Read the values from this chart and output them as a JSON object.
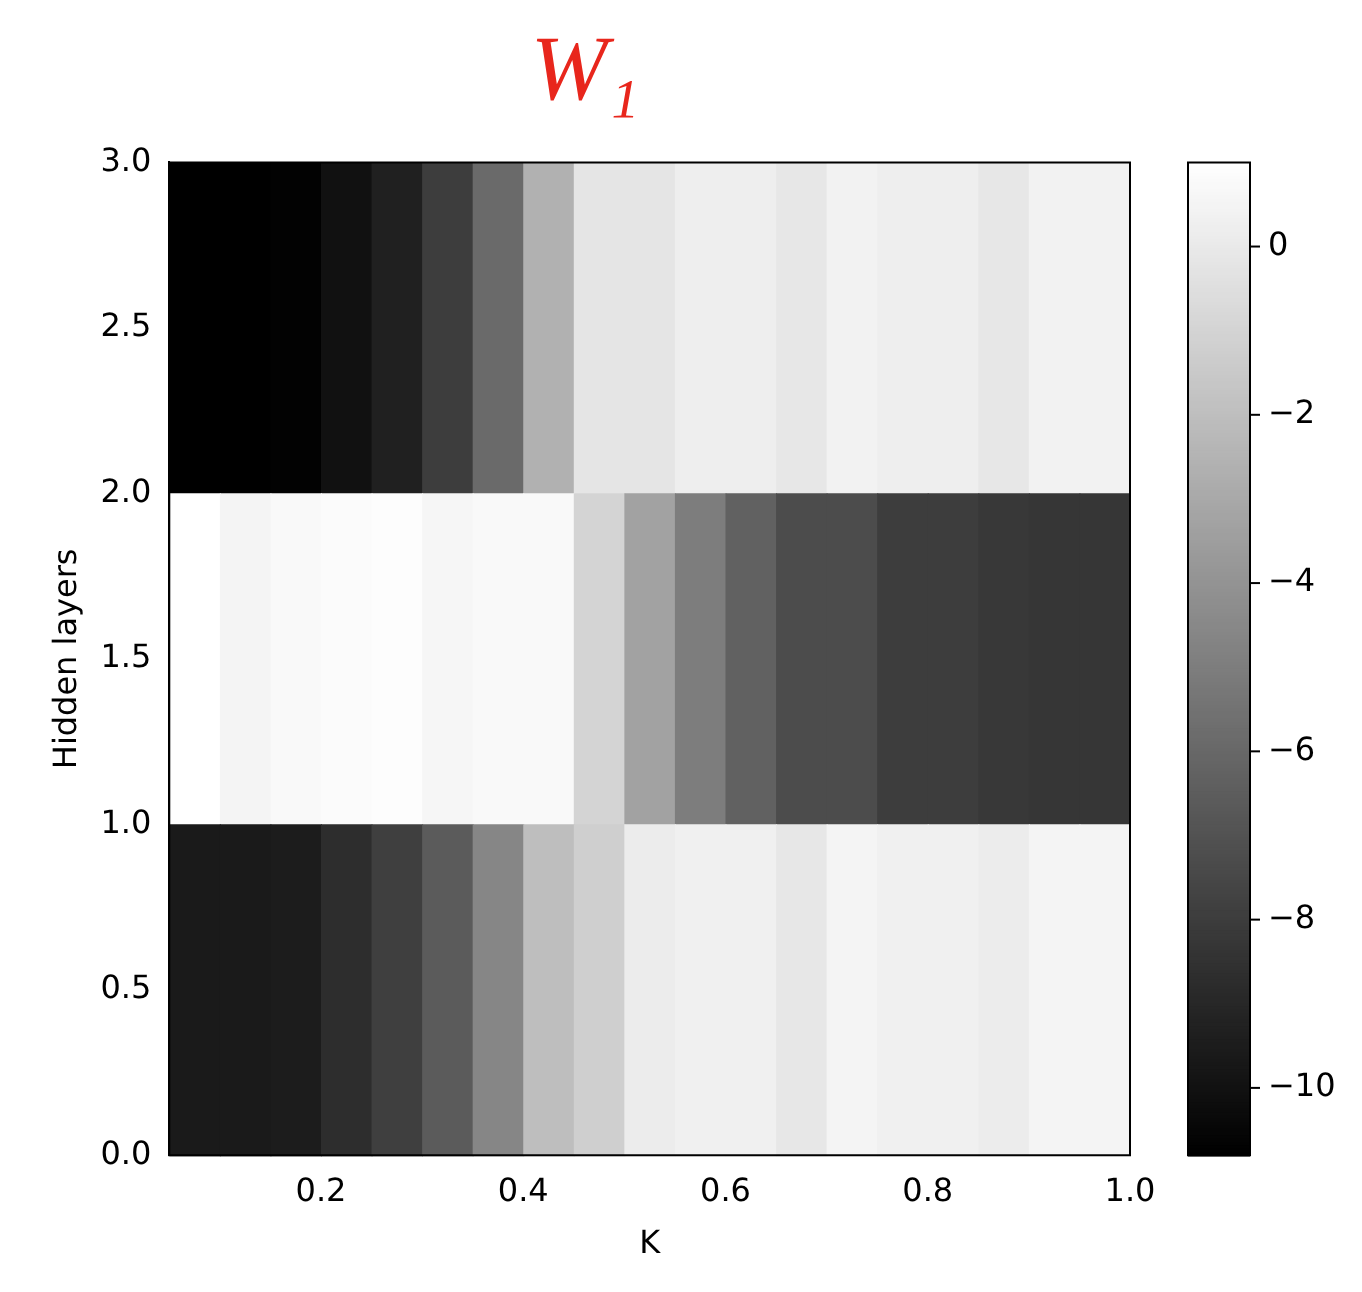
{
  "chart_data": {
    "type": "heatmap",
    "title": "W₁",
    "xlabel": "K",
    "ylabel": "Hidden layers",
    "x": [
      0.075,
      0.125,
      0.175,
      0.225,
      0.275,
      0.325,
      0.375,
      0.425,
      0.475,
      0.525,
      0.575,
      0.625,
      0.675,
      0.725,
      0.775,
      0.825,
      0.875,
      0.925,
      0.975
    ],
    "y": [
      2.5,
      1.5,
      0.5
    ],
    "xlim": [
      0.05,
      1.0
    ],
    "xticks": [
      0.2,
      0.4,
      0.6,
      0.8,
      {
        "value": 1,
        "label": "1.0"
      }
    ],
    "ylim": [
      0.0,
      3.0
    ],
    "yticks": [
      {
        "value": 0,
        "label": "0.0"
      },
      0.5,
      {
        "value": 1,
        "label": "1.0"
      },
      1.5,
      {
        "value": 2,
        "label": "2.0"
      },
      2.5,
      {
        "value": 3,
        "label": "3.0"
      }
    ],
    "cells": [
      [
        -10.8,
        -10.8,
        -10.7,
        -10.0,
        -9.3,
        -8.0,
        -5.9,
        -2.6,
        -0.2,
        -0.2,
        0.2,
        0.2,
        -0.1,
        0.4,
        0.2,
        0.2,
        -0.1,
        0.4,
        0.4
      ],
      [
        1.0,
        0.5,
        0.7,
        0.8,
        0.9,
        0.6,
        0.7,
        0.7,
        -1.0,
        -3.3,
        -5.0,
        -6.3,
        -7.3,
        -7.3,
        -8.0,
        -8.0,
        -8.2,
        -8.3,
        -8.3
      ],
      [
        -9.6,
        -9.6,
        -9.5,
        -8.7,
        -7.9,
        -6.6,
        -4.6,
        -2.0,
        -1.2,
        0.1,
        0.3,
        0.3,
        -0.1,
        0.5,
        0.3,
        0.3,
        0.1,
        0.5,
        0.5
      ]
    ],
    "clim": [
      -10.8,
      1.0
    ],
    "cticks": [
      0,
      -2,
      -4,
      -6,
      -8,
      -10
    ]
  }
}
